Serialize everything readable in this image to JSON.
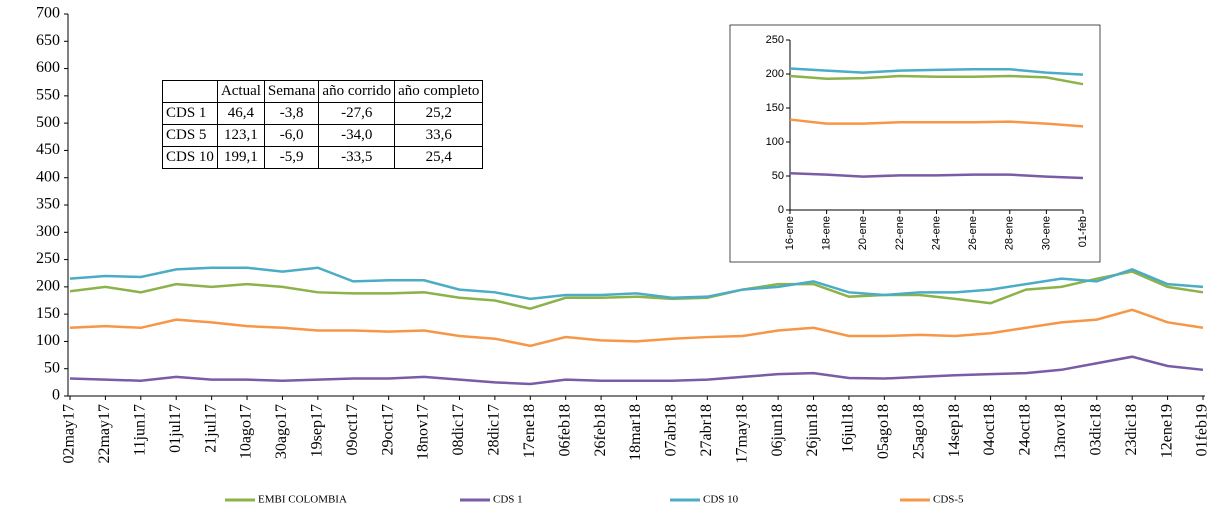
{
  "chart_data": [
    {
      "type": "line",
      "categories": [
        "02may17",
        "22may17",
        "11jun17",
        "01jul17",
        "21jul17",
        "10ago17",
        "30ago17",
        "19sep17",
        "09oct17",
        "29oct17",
        "18nov17",
        "08dic17",
        "28dic17",
        "17ene18",
        "06feb18",
        "26feb18",
        "18mar18",
        "07abr18",
        "27abr18",
        "17may18",
        "06jun18",
        "26jun18",
        "16jul18",
        "05ago18",
        "25ago18",
        "14sep18",
        "04oct18",
        "24oct18",
        "13nov18",
        "03dic18",
        "23dic18",
        "12ene19",
        "01feb19"
      ],
      "series": [
        {
          "name": "EMBI COLOMBIA",
          "color": "#8cb24a",
          "values": [
            192,
            200,
            190,
            205,
            200,
            205,
            200,
            190,
            188,
            188,
            190,
            180,
            175,
            160,
            180,
            180,
            182,
            178,
            180,
            195,
            205,
            205,
            182,
            185,
            185,
            178,
            170,
            195,
            200,
            215,
            228,
            200,
            190
          ]
        },
        {
          "name": "CDS 1",
          "color": "#7a5ba6",
          "values": [
            32,
            30,
            28,
            35,
            30,
            30,
            28,
            30,
            32,
            32,
            35,
            30,
            25,
            22,
            30,
            28,
            28,
            28,
            30,
            35,
            40,
            42,
            33,
            32,
            35,
            38,
            40,
            42,
            48,
            60,
            72,
            55,
            48
          ]
        },
        {
          "name": "CDS 10",
          "color": "#4bacc6",
          "values": [
            215,
            220,
            218,
            232,
            235,
            235,
            228,
            235,
            210,
            212,
            212,
            195,
            190,
            178,
            185,
            185,
            188,
            180,
            182,
            195,
            200,
            210,
            190,
            185,
            190,
            190,
            195,
            205,
            215,
            210,
            232,
            205,
            200
          ]
        },
        {
          "name": "CDS-5",
          "color": "#f79646",
          "values": [
            125,
            128,
            125,
            140,
            135,
            128,
            125,
            120,
            120,
            118,
            120,
            110,
            105,
            92,
            108,
            102,
            100,
            105,
            108,
            110,
            120,
            125,
            110,
            110,
            112,
            110,
            115,
            125,
            135,
            140,
            158,
            135,
            125
          ]
        }
      ],
      "ylim": [
        0,
        700
      ],
      "yticks": [
        0,
        50,
        100,
        150,
        200,
        250,
        300,
        350,
        400,
        450,
        500,
        550,
        600,
        650,
        700
      ],
      "legend": "bottom"
    },
    {
      "type": "line",
      "categories": [
        "16-ene",
        "18-ene",
        "20-ene",
        "22-ene",
        "24-ene",
        "26-ene",
        "28-ene",
        "30-ene",
        "01-feb"
      ],
      "series": [
        {
          "name": "EMBI COLOMBIA",
          "color": "#8cb24a",
          "values": [
            197,
            193,
            194,
            197,
            196,
            196,
            197,
            195,
            185
          ]
        },
        {
          "name": "CDS 1",
          "color": "#7a5ba6",
          "values": [
            54,
            52,
            49,
            51,
            51,
            52,
            52,
            49,
            47
          ]
        },
        {
          "name": "CDS 10",
          "color": "#4bacc6",
          "values": [
            208,
            205,
            202,
            205,
            206,
            207,
            207,
            202,
            199
          ]
        },
        {
          "name": "CDS-5",
          "color": "#f79646",
          "values": [
            133,
            127,
            127,
            129,
            129,
            129,
            130,
            127,
            123
          ]
        }
      ],
      "ylim": [
        0,
        250
      ],
      "yticks": [
        0,
        50,
        100,
        150,
        200,
        250
      ]
    }
  ],
  "table": {
    "header": [
      "Actual",
      "Semana",
      "año corrido",
      "año completo"
    ],
    "rows": [
      [
        "CDS 1",
        "46,4",
        "-3,8",
        "-27,6",
        "25,2"
      ],
      [
        "CDS 5",
        "123,1",
        "-6,0",
        "-34,0",
        "33,6"
      ],
      [
        "CDS 10",
        "199,1",
        "-5,9",
        "-33,5",
        "25,4"
      ]
    ]
  }
}
